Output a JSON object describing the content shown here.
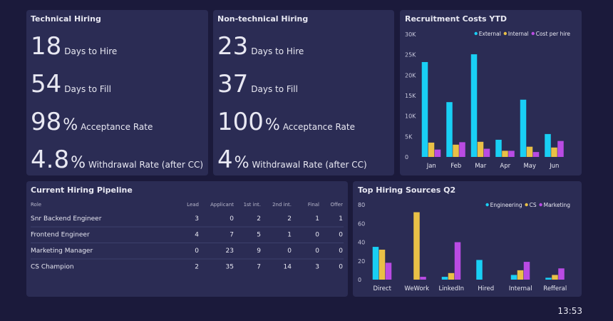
{
  "kpi_panels": [
    {
      "title": "Technical Hiring",
      "items": [
        {
          "value": 18,
          "label": "Days to Hire"
        },
        {
          "value": 54,
          "label": "Days to Fill"
        },
        {
          "value": 98,
          "unit": "%",
          "label": "Acceptance Rate"
        },
        {
          "value": 4.8,
          "unit": "%",
          "label": "Withdrawal Rate (after CC)"
        }
      ]
    },
    {
      "title": "Non-technical Hiring",
      "items": [
        {
          "value": 23,
          "label": "Days to Hire"
        },
        {
          "value": 37,
          "label": "Days to Fill"
        },
        {
          "value": 100,
          "unit": "%",
          "label": "Acceptance Rate"
        },
        {
          "value": 4,
          "unit": "%",
          "label": "Withdrawal Rate (after CC)"
        }
      ]
    }
  ],
  "pipeline": {
    "title": "Current Hiring Pipeline",
    "columns": [
      "Role",
      "Lead",
      "Applicant",
      "1st int.",
      "2nd int.",
      "Final",
      "Offer"
    ],
    "rows": [
      [
        "Snr Backend Engineer",
        3,
        0,
        2,
        2,
        1,
        1
      ],
      [
        "Frontend Engineer",
        4,
        7,
        5,
        1,
        0,
        0
      ],
      [
        "Marketing Manager",
        0,
        23,
        9,
        0,
        0,
        0
      ],
      [
        "CS Champion",
        2,
        35,
        7,
        14,
        3,
        0
      ]
    ]
  },
  "chart_data": [
    {
      "type": "bar",
      "title": "Recruitment Costs YTD",
      "categories": [
        "Jan",
        "Feb",
        "Mar",
        "Apr",
        "May",
        "Jun"
      ],
      "series": [
        {
          "name": "External",
          "color": "#19cff4",
          "values": [
            23200,
            13400,
            25100,
            4200,
            14000,
            5600
          ]
        },
        {
          "name": "Internal",
          "color": "#e9c046",
          "values": [
            3500,
            3000,
            3700,
            1500,
            2500,
            2300
          ]
        },
        {
          "name": "Cost per hire",
          "color": "#b94be3",
          "values": [
            1800,
            3600,
            2000,
            1500,
            1200,
            3900
          ]
        }
      ],
      "ylim": [
        0,
        30000
      ],
      "yticks": [
        0,
        {
          "value": 5000,
          "label": "5K"
        },
        {
          "value": 10000,
          "label": "10K"
        },
        {
          "value": 15000,
          "label": "15K"
        },
        {
          "value": 20000,
          "label": "20K"
        },
        {
          "value": 25000,
          "label": "25K"
        },
        {
          "value": 30000,
          "label": "30K"
        }
      ],
      "legend": "top-right"
    },
    {
      "type": "bar",
      "title": "Top Hiring Sources Q2",
      "categories": [
        "Direct",
        "WeWork",
        "LinkedIn",
        "Hired",
        "Internal",
        "Refferal"
      ],
      "series": [
        {
          "name": "Engineering",
          "color": "#19cff4",
          "values": [
            35,
            0,
            3,
            21,
            5,
            2
          ]
        },
        {
          "name": "CS",
          "color": "#e9c046",
          "values": [
            32,
            72,
            7,
            0,
            10,
            5
          ]
        },
        {
          "name": "Marketing",
          "color": "#b94be3",
          "values": [
            18,
            3,
            40,
            0,
            19,
            12
          ]
        }
      ],
      "ylim": [
        0,
        80
      ],
      "yticks": [
        0,
        20,
        40,
        60,
        80
      ],
      "legend": "top-right"
    }
  ],
  "clock": "13:53"
}
